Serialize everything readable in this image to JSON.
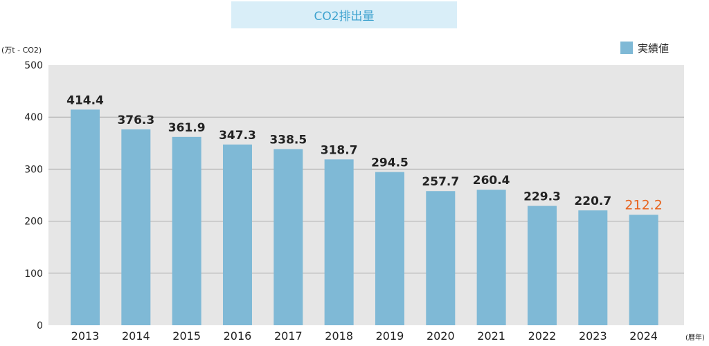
{
  "chart_data": {
    "type": "bar",
    "title": "CO2排出量",
    "ylabel": "(万t - CO2)",
    "xlabel": "(暦年)",
    "legend": "実績値",
    "legend_position": "top-right",
    "grid": true,
    "ylim": [
      0,
      500
    ],
    "yticks": [
      0,
      100,
      200,
      300,
      400,
      500
    ],
    "categories": [
      "2013",
      "2014",
      "2015",
      "2016",
      "2017",
      "2018",
      "2019",
      "2020",
      "2021",
      "2022",
      "2023",
      "2024"
    ],
    "values": [
      414.4,
      376.3,
      361.9,
      347.3,
      338.5,
      318.7,
      294.5,
      257.7,
      260.4,
      229.3,
      220.7,
      212.2
    ],
    "value_labels": [
      "414.4",
      "376.3",
      "361.9",
      "347.3",
      "338.5",
      "318.7",
      "294.5",
      "257.7",
      "260.4",
      "229.3",
      "220.7",
      "212.2"
    ],
    "highlight_index": 11
  },
  "colors": {
    "bar": "#7fb9d6",
    "plot_bg": "#e6e6e6",
    "grid": "#aaaaaa",
    "highlight_label": "#e8641e",
    "text": "#222222"
  }
}
